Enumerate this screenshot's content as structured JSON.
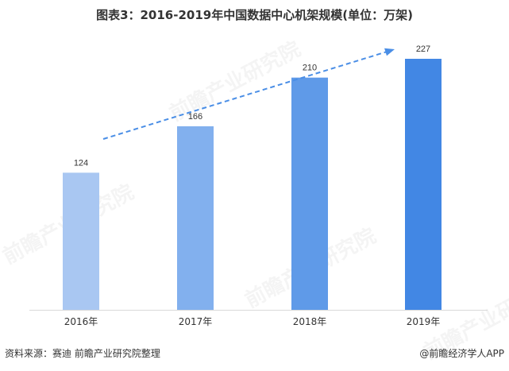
{
  "title": "图表3：2016-2019年中国数据中心机架规模(单位：万架)",
  "source": "资料来源：赛迪 前瞻产业研究院整理",
  "brand": "@前瞻经济学人APP",
  "watermark": "前瞻产业研究院",
  "colors": {
    "bars": [
      "#a9c7f2",
      "#82b0ee",
      "#5f9ae8",
      "#4287e4"
    ],
    "trend_arrow": "#4a8ee6",
    "axis": "#d9d9d9",
    "text": "#333333"
  },
  "chart_data": {
    "type": "bar",
    "categories": [
      "2016年",
      "2017年",
      "2018年",
      "2019年"
    ],
    "values": [
      124,
      166,
      210,
      227
    ],
    "data_labels": [
      "124",
      "166",
      "210",
      "227"
    ],
    "ylim": [
      0,
      250
    ],
    "grid": false,
    "legend": "none",
    "trend_arrow": "upward dashed arrow from 2016 to 2019"
  }
}
